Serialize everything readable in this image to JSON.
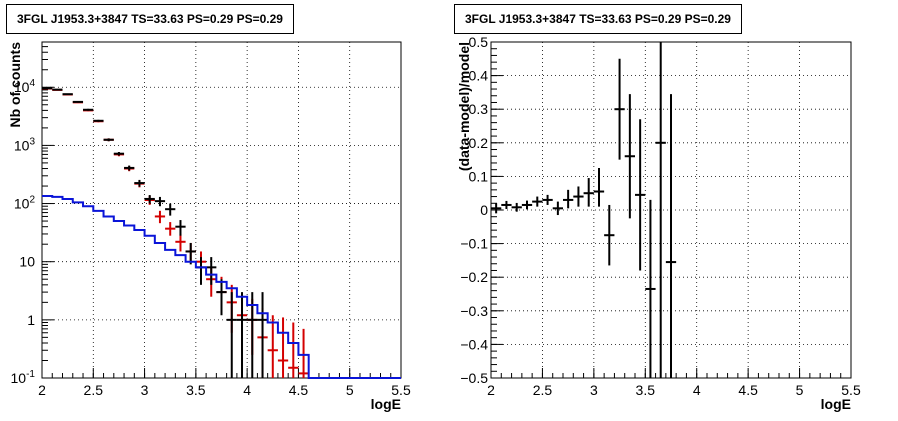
{
  "chart_data": [
    {
      "type": "line",
      "title": "3FGL J1953.3+3847 TS=33.63 PS=0.29 PS=0.29",
      "xlabel": "logE",
      "ylabel": "Nb of counts",
      "xlim": [
        2,
        5.5
      ],
      "ylim": [
        0.1,
        60000
      ],
      "yscale": "log",
      "grid": true,
      "x_ticks": [
        "2",
        "2.5",
        "3",
        "3.5",
        "4",
        "4.5",
        "5",
        "5.5"
      ],
      "y_ticks": [
        "10^-1",
        "1",
        "10",
        "10^2",
        "10^3",
        "10^4"
      ],
      "series": [
        {
          "color": "#d40000",
          "style": "error-bars",
          "x": [
            2.05,
            2.15,
            2.25,
            2.35,
            2.45,
            2.55,
            2.65,
            2.75,
            2.85,
            2.95,
            3.05,
            3.15,
            3.25,
            3.35,
            3.45,
            3.55,
            3.65,
            3.75,
            3.85,
            3.95,
            4.05,
            4.15,
            4.25,
            4.35,
            4.45,
            4.55
          ],
          "y": [
            9500,
            9000,
            7500,
            5500,
            4000,
            2600,
            1250,
            700,
            400,
            220,
            115,
            60,
            37,
            22,
            15,
            10,
            5,
            3,
            2,
            1.2,
            1,
            0.5,
            0.3,
            0.2,
            0.15,
            0.12
          ],
          "y_low": [
            9300,
            8800,
            7300,
            5350,
            3870,
            2500,
            1180,
            650,
            360,
            190,
            95,
            46,
            28,
            15,
            10,
            5.5,
            2.5,
            1.3,
            0.6,
            0.3,
            0.25,
            0.1,
            0.1,
            0.1,
            0.1,
            0.1
          ],
          "y_high": [
            9700,
            9200,
            7700,
            5650,
            4130,
            2700,
            1320,
            750,
            440,
            250,
            135,
            75,
            48,
            30,
            21,
            15,
            8,
            5.5,
            4,
            2.7,
            2.3,
            1.6,
            1.2,
            1.1,
            0.9,
            0.7
          ]
        },
        {
          "color": "#000000",
          "style": "error-bars",
          "x": [
            2.05,
            2.15,
            2.25,
            2.35,
            2.45,
            2.55,
            2.65,
            2.75,
            2.85,
            2.95,
            3.05,
            3.15,
            3.25,
            3.35,
            3.45,
            3.55,
            3.65,
            3.75,
            3.85,
            3.95,
            4.05,
            4.15
          ],
          "y": [
            9600,
            9100,
            7600,
            5600,
            4100,
            2650,
            1250,
            720,
            410,
            225,
            120,
            110,
            80,
            40,
            15,
            8,
            8,
            3,
            1,
            1,
            1,
            1
          ],
          "y_low": [
            9400,
            8900,
            7400,
            5450,
            3950,
            2550,
            1180,
            670,
            370,
            195,
            100,
            90,
            62,
            28,
            9,
            4,
            4,
            1.2,
            0.1,
            0.1,
            0.1,
            0.1
          ],
          "y_high": [
            9800,
            9300,
            7800,
            5750,
            4250,
            2750,
            1320,
            770,
            450,
            255,
            140,
            130,
            100,
            52,
            21,
            12,
            12,
            5,
            3,
            3,
            3,
            3
          ]
        },
        {
          "color": "#0a14d8",
          "style": "step",
          "x": [
            2.0,
            2.1,
            2.2,
            2.3,
            2.4,
            2.5,
            2.6,
            2.7,
            2.8,
            2.9,
            3.0,
            3.1,
            3.2,
            3.3,
            3.4,
            3.5,
            3.6,
            3.7,
            3.8,
            3.9,
            4.0,
            4.1,
            4.2,
            4.3,
            4.4,
            4.5,
            4.6,
            5.5
          ],
          "y": [
            135,
            130,
            120,
            105,
            90,
            75,
            60,
            50,
            42,
            35,
            28,
            21,
            16,
            13,
            10,
            8,
            6,
            4.5,
            3.5,
            2.5,
            1.8,
            1.3,
            0.9,
            0.6,
            0.4,
            0.25,
            0.1,
            0.1
          ]
        }
      ]
    },
    {
      "type": "scatter",
      "title": "3FGL J1953.3+3847 TS=33.63 PS=0.29 PS=0.29",
      "xlabel": "logE",
      "ylabel": "(data-model)/model",
      "xlim": [
        2,
        5.5
      ],
      "ylim": [
        -0.5,
        0.5
      ],
      "grid": true,
      "x_ticks": [
        "2",
        "2.5",
        "3",
        "3.5",
        "4",
        "4.5",
        "5",
        "5.5"
      ],
      "y_ticks": [
        "−0.5",
        "−0.4",
        "−0.3",
        "−0.2",
        "−0.1",
        "0",
        "0.1",
        "0.2",
        "0.3",
        "0.4",
        "0.5"
      ],
      "series": [
        {
          "color": "#000000",
          "style": "error-bars",
          "x": [
            2.05,
            2.15,
            2.25,
            2.35,
            2.45,
            2.55,
            2.65,
            2.75,
            2.85,
            2.95,
            3.05,
            3.15,
            3.25,
            3.35,
            3.45,
            3.55,
            3.65,
            3.75
          ],
          "y": [
            0.005,
            0.015,
            0.008,
            0.015,
            0.025,
            0.03,
            0.005,
            0.03,
            0.04,
            0.05,
            0.055,
            -0.075,
            0.3,
            0.16,
            0.045,
            -0.235,
            0.2,
            -0.155
          ],
          "y_low": [
            -0.01,
            0.003,
            -0.005,
            0.002,
            0.01,
            0.015,
            -0.015,
            0.005,
            0.01,
            0.01,
            0.01,
            -0.165,
            0.15,
            -0.025,
            -0.18,
            -0.5,
            -0.5,
            -0.5
          ],
          "y_high": [
            0.02,
            0.027,
            0.021,
            0.028,
            0.04,
            0.045,
            0.025,
            0.06,
            0.07,
            0.095,
            0.125,
            0.015,
            0.45,
            0.345,
            0.27,
            0.03,
            0.5,
            0.345
          ]
        }
      ]
    }
  ]
}
